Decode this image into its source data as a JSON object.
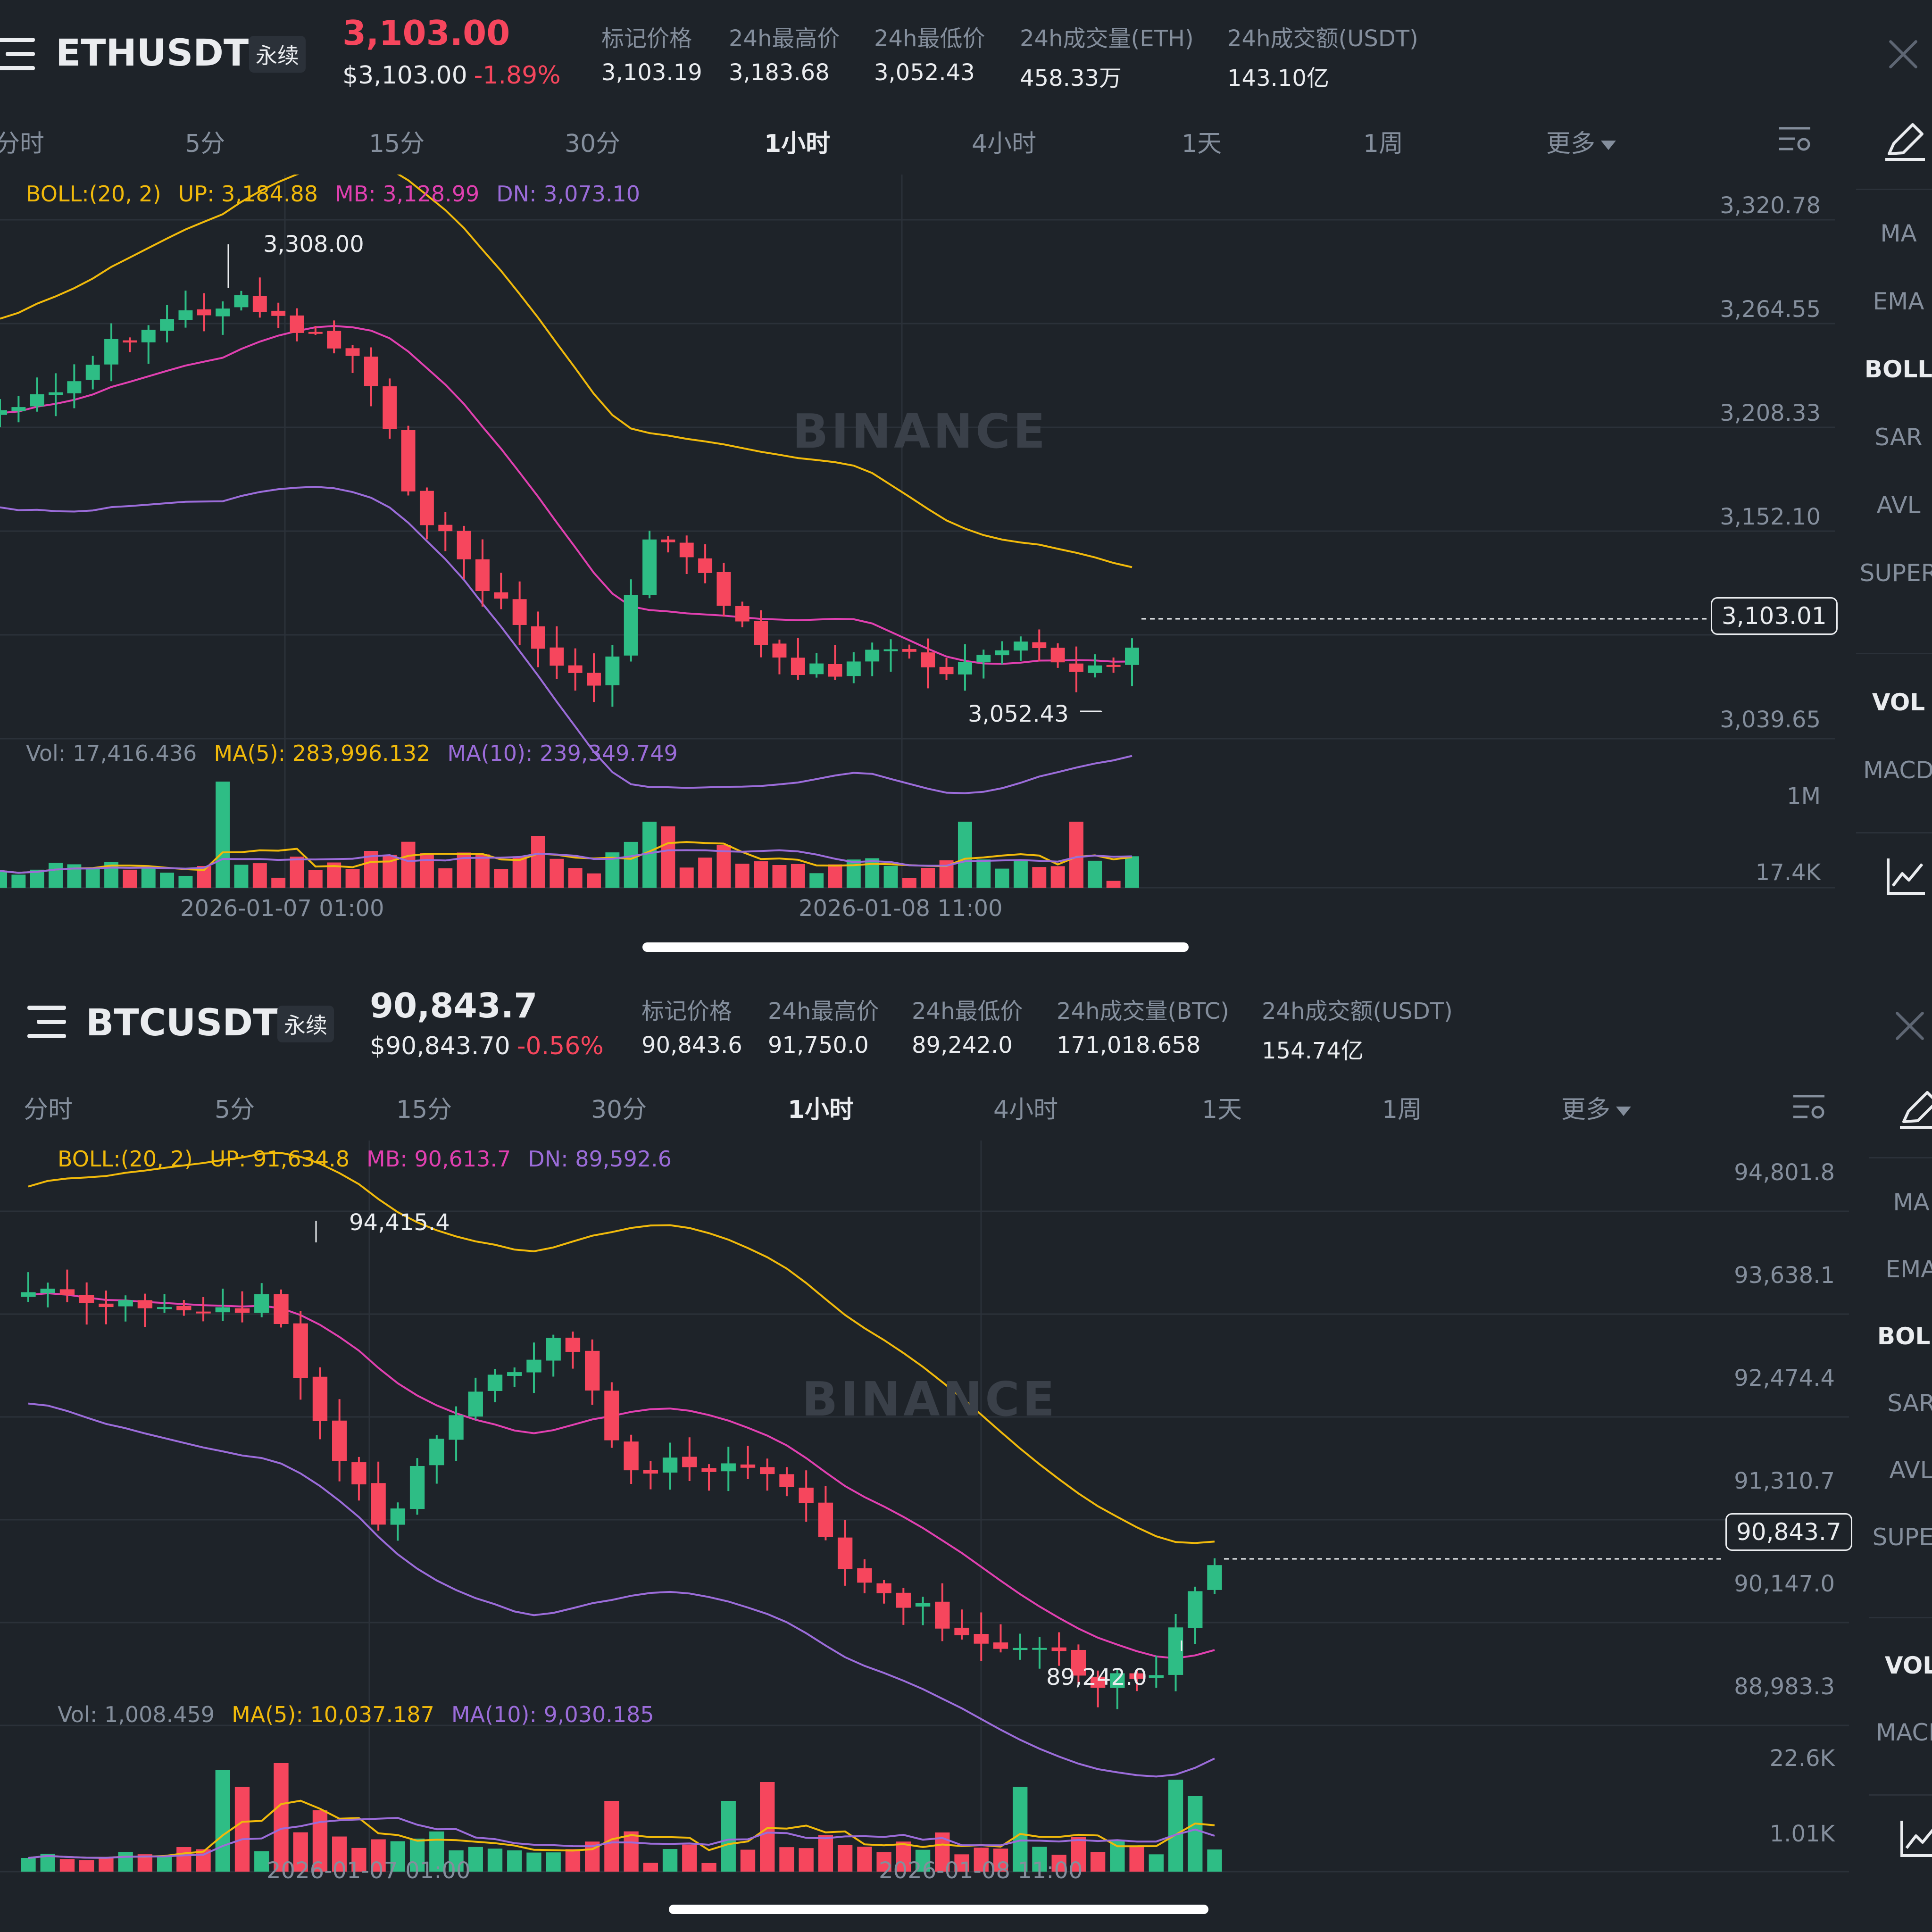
{
  "panels": [
    {
      "symbol": "ETHUSDT",
      "perp_label": "永续",
      "last_price": "3,103.00",
      "usd_price": "$3,103.00",
      "change": "-1.89%",
      "stats": [
        {
          "label": "标记价格",
          "value": "3,103.19"
        },
        {
          "label": "24h最高价",
          "value": "3,183.68"
        },
        {
          "label": "24h最低价",
          "value": "3,052.43"
        },
        {
          "label": "24h成交量(ETH)",
          "value": "458.33万"
        },
        {
          "label": "24h成交额(USDT)",
          "value": "143.10亿"
        }
      ],
      "tabs": [
        "分时",
        "5分",
        "15分",
        "30分",
        "1小时",
        "4小时",
        "1天",
        "1周",
        "更多"
      ],
      "active_tab": "1小时",
      "boll": {
        "name": "BOLL:(20, 2)",
        "up": "UP: 3,184.88",
        "mb": "MB: 3,128.99",
        "dn": "DN: 3,073.10"
      },
      "y_ticks": [
        "3,320.78",
        "3,264.55",
        "3,208.33",
        "3,152.10",
        "3,039.65"
      ],
      "current_price_tag": "3,103.01",
      "high_label": "3,308.00",
      "low_label": "3,052.43",
      "vol_legend": {
        "vol": "Vol: 17,416.436",
        "ma5": "MA(5): 283,996.132",
        "ma10": "MA(10): 239,349.749"
      },
      "vol_ticks": [
        "1M",
        "17.4K"
      ],
      "x_ticks": [
        "2026-01-07 01:00",
        "2026-01-08 11:00"
      ],
      "side_items": [
        "MA",
        "EMA",
        "BOLL",
        "SAR",
        "AVL",
        "SUPER",
        "VOL",
        "MACD"
      ],
      "side_active": [
        "BOLL",
        "VOL"
      ],
      "watermark": "BINANCE"
    },
    {
      "symbol": "BTCUSDT",
      "perp_label": "永续",
      "last_price": "90,843.7",
      "usd_price": "$90,843.70",
      "change": "-0.56%",
      "stats": [
        {
          "label": "标记价格",
          "value": "90,843.6"
        },
        {
          "label": "24h最高价",
          "value": "91,750.0"
        },
        {
          "label": "24h最低价",
          "value": "89,242.0"
        },
        {
          "label": "24h成交量(BTC)",
          "value": "171,018.658"
        },
        {
          "label": "24h成交额(USDT)",
          "value": "154.74亿"
        }
      ],
      "tabs": [
        "分时",
        "5分",
        "15分",
        "30分",
        "1小时",
        "4小时",
        "1天",
        "1周",
        "更多"
      ],
      "active_tab": "1小时",
      "boll": {
        "name": "BOLL:(20, 2)",
        "up": "UP: 91,634.8",
        "mb": "MB: 90,613.7",
        "dn": "DN: 89,592.6"
      },
      "y_ticks": [
        "94,801.8",
        "93,638.1",
        "92,474.4",
        "91,310.7",
        "90,147.0",
        "88,983.3"
      ],
      "current_price_tag": "90,843.7",
      "high_label": "94,415.4",
      "low_label": "89,242.0",
      "vol_legend": {
        "vol": "Vol: 1,008.459",
        "ma5": "MA(5): 10,037.187",
        "ma10": "MA(10): 9,030.185"
      },
      "vol_ticks": [
        "22.6K",
        "1.01K"
      ],
      "x_ticks": [
        "2026-01-07 01:00",
        "2026-01-08 11:00"
      ],
      "side_items": [
        "MA",
        "EMA",
        "BOLL",
        "SAR",
        "AVL",
        "SUPER",
        "VOL",
        "MACD"
      ],
      "side_active": [
        "BOLL",
        "VOL"
      ],
      "watermark": "BINANCE"
    }
  ],
  "colors": {
    "up": "#2ebd85",
    "down": "#f6465d",
    "boll_up": "#f0b90b",
    "boll_mb": "#e040b0",
    "boll_dn": "#9b6cd9",
    "bg": "#1e2329",
    "muted": "#848e9c"
  }
}
